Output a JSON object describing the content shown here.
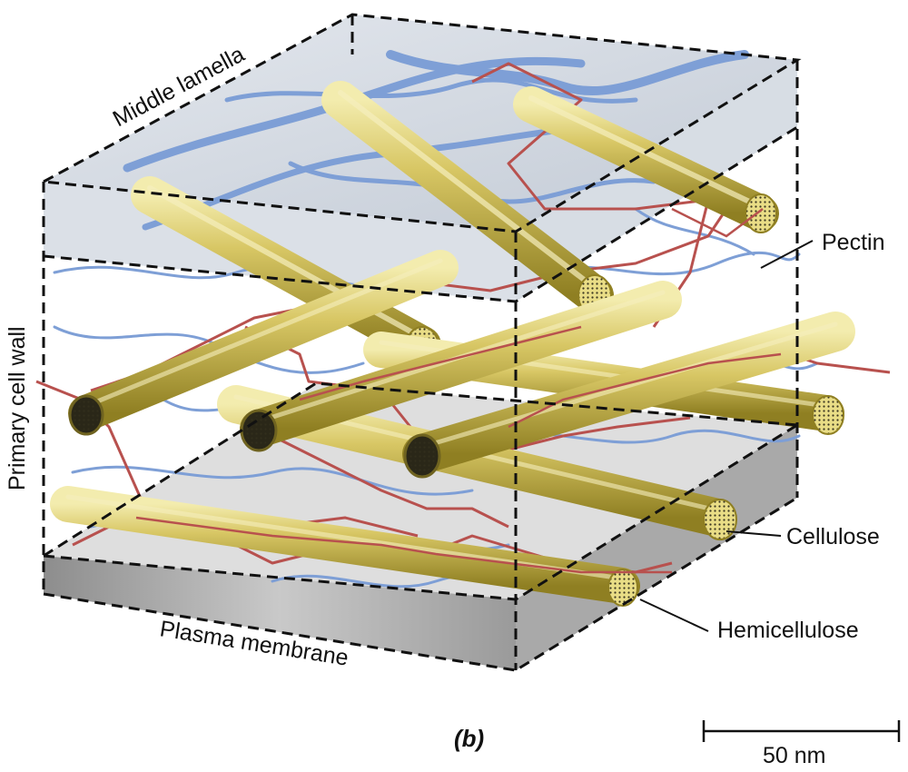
{
  "labels": {
    "middle_lamella": "Middle lamella",
    "primary_cell_wall": "Primary cell wall",
    "plasma_membrane": "Plasma membrane",
    "pectin": "Pectin",
    "cellulose": "Cellulose",
    "hemicellulose": "Hemicellulose",
    "panel": "(b)",
    "scale": "50 nm"
  },
  "colors": {
    "cellulose_fill": "#c9b74a",
    "cellulose_highlight": "#f2e9a8",
    "cellulose_end": "#e8d870",
    "cellulose_end_dark": "#2a2718",
    "pectin": "#7e9fd6",
    "hemicellulose": "#b8514e",
    "middle_lamella": "#cfd6df",
    "plasma_membrane": "#b5b5b5",
    "box_edge": "#111111"
  }
}
